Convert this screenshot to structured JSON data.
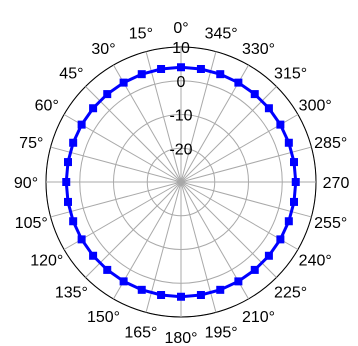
{
  "chart_data": {
    "type": "polar-line",
    "title": "",
    "angle_direction": "counterclockwise",
    "zero_angle_position": "top",
    "angle_step_deg": 15,
    "angle_tick_labels": [
      "0°",
      "15°",
      "30°",
      "45°",
      "60°",
      "75°",
      "90°",
      "105°",
      "120°",
      "135°",
      "150°",
      "165°",
      "180°",
      "195°",
      "210°",
      "225°",
      "240°",
      "255°",
      "270",
      "285°",
      "300°",
      "315°",
      "330°",
      "345°"
    ],
    "radial_range": [
      -30,
      10
    ],
    "radial_ticks": [
      -30,
      -20,
      -10,
      0,
      10
    ],
    "radial_tick_labels": [
      "-20",
      "-10",
      "0",
      "10"
    ],
    "grid": true,
    "series": [
      {
        "color": "#0000ff",
        "marker": "square",
        "angles_deg": [
          0,
          10,
          20,
          30,
          40,
          50,
          60,
          70,
          80,
          90,
          100,
          110,
          120,
          130,
          140,
          150,
          160,
          170,
          180,
          190,
          200,
          210,
          220,
          230,
          240,
          250,
          260,
          270,
          280,
          290,
          300,
          310,
          320,
          330,
          340,
          350
        ],
        "values": [
          4,
          4,
          4,
          4,
          4,
          4,
          4,
          4,
          4,
          4,
          4,
          4,
          4,
          4,
          4,
          4,
          4,
          4,
          4,
          4,
          4,
          4,
          4,
          4,
          4,
          4,
          4,
          4,
          4,
          4,
          4,
          4,
          4,
          4,
          4,
          4
        ]
      }
    ]
  }
}
